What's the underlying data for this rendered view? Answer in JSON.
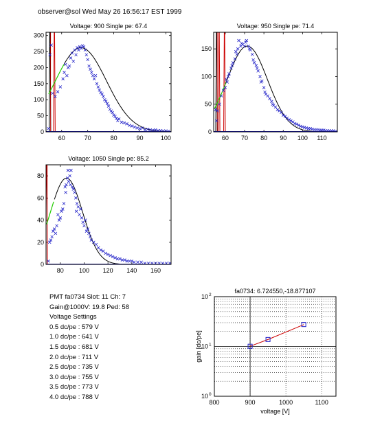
{
  "header": {
    "text": "observer@sol  Wed May 26 16:56:17 EST 1999"
  },
  "colors": {
    "data": "#2020c8",
    "fit": "#000000",
    "fit_low": "#22cc00",
    "pedestal": "#cc0000",
    "gain_line": "#cc0000",
    "gain_marker": "#2020c8"
  },
  "info": {
    "line1": "PMT fa0734 Slot: 11 Ch: 7",
    "line2": "Gain@1000V: 19.8 Ped: 58",
    "line3": "Voltage Settings",
    "settings": [
      "0.5 dc/pe : 579 V",
      "1.0 dc/pe : 641 V",
      "1.5 dc/pe : 681 V",
      "2.0 dc/pe : 711 V",
      "2.5 dc/pe : 735 V",
      "3.0 dc/pe : 755 V",
      "3.5 dc/pe : 773 V",
      "4.0 dc/pe : 788 V"
    ]
  },
  "chart_data": [
    {
      "type": "scatter",
      "title": "Voltage: 900 Single pe: 67.4",
      "xlim": [
        54,
        102
      ],
      "ylim": [
        0,
        310
      ],
      "xticks": [
        60,
        70,
        80,
        90,
        100
      ],
      "yticks": [
        0,
        50,
        100,
        150,
        200,
        250,
        300
      ],
      "fit": {
        "amplitude": 262,
        "mean": 67.4,
        "sigma": 9.8,
        "x_start": 55,
        "switch_x": 61
      },
      "pedestal_x": [
        55.5,
        57.2
      ],
      "points": [
        [
          55,
          10
        ],
        [
          55.5,
          240
        ],
        [
          56,
          270
        ],
        [
          56.5,
          120
        ],
        [
          57.5,
          110
        ],
        [
          58.5,
          125
        ],
        [
          59.5,
          140
        ],
        [
          60.5,
          165
        ],
        [
          61,
          185
        ],
        [
          61.5,
          210
        ],
        [
          62,
          175
        ],
        [
          62.5,
          200
        ],
        [
          63,
          205
        ],
        [
          63.5,
          230
        ],
        [
          64,
          245
        ],
        [
          64.5,
          220
        ],
        [
          65,
          255
        ],
        [
          65.5,
          240
        ],
        [
          66,
          262
        ],
        [
          66.5,
          255
        ],
        [
          67,
          265
        ],
        [
          67.5,
          260
        ],
        [
          68,
          268
        ],
        [
          68.5,
          265
        ],
        [
          69,
          255
        ],
        [
          69.5,
          240
        ],
        [
          70,
          225
        ],
        [
          70.5,
          205
        ],
        [
          71,
          195
        ],
        [
          71.5,
          185
        ],
        [
          72,
          175
        ],
        [
          72.5,
          165
        ],
        [
          73,
          175
        ],
        [
          73.5,
          150
        ],
        [
          74,
          140
        ],
        [
          74.5,
          130
        ],
        [
          75,
          122
        ],
        [
          75.5,
          118
        ],
        [
          76,
          110
        ],
        [
          76.5,
          100
        ],
        [
          77,
          95
        ],
        [
          77.5,
          88
        ],
        [
          78,
          80
        ],
        [
          78.5,
          70
        ],
        [
          79,
          65
        ],
        [
          79.5,
          60
        ],
        [
          80,
          52
        ],
        [
          80.5,
          48
        ],
        [
          81,
          42
        ],
        [
          81.5,
          35
        ],
        [
          82,
          40
        ],
        [
          83,
          30
        ],
        [
          84,
          28
        ],
        [
          85,
          25
        ],
        [
          86,
          20
        ],
        [
          87,
          18
        ],
        [
          88,
          15
        ],
        [
          89,
          12
        ],
        [
          90,
          10
        ],
        [
          91,
          12
        ],
        [
          92,
          6
        ],
        [
          93,
          8
        ],
        [
          94,
          6
        ],
        [
          95,
          5
        ],
        [
          96,
          6
        ],
        [
          97,
          4
        ],
        [
          98,
          4
        ],
        [
          99,
          3
        ],
        [
          100,
          3
        ],
        [
          101,
          2
        ]
      ]
    },
    {
      "type": "scatter",
      "title": "Voltage: 950 Single pe: 71.4",
      "xlim": [
        54,
        118
      ],
      "ylim": [
        0,
        180
      ],
      "xticks": [
        60,
        70,
        80,
        90,
        100,
        110
      ],
      "yticks": [
        0,
        50,
        100,
        150
      ],
      "fit": {
        "amplitude": 155,
        "mean": 71.4,
        "sigma": 10.5,
        "x_start": 54.5,
        "switch_x": 60.5
      },
      "pedestal_x": [
        55.5,
        56.8,
        59.6
      ],
      "points": [
        [
          55,
          40
        ],
        [
          55.5,
          20
        ],
        [
          56,
          38
        ],
        [
          57,
          50
        ],
        [
          58,
          65
        ],
        [
          59,
          75
        ],
        [
          60,
          80
        ],
        [
          60.5,
          95
        ],
        [
          61,
          90
        ],
        [
          61.5,
          100
        ],
        [
          62,
          105
        ],
        [
          63,
          115
        ],
        [
          63.5,
          120
        ],
        [
          64,
          125
        ],
        [
          65,
          132
        ],
        [
          65.5,
          145
        ],
        [
          66,
          140
        ],
        [
          66.5,
          150
        ],
        [
          67,
          165
        ],
        [
          68,
          155
        ],
        [
          68.5,
          160
        ],
        [
          69,
          158
        ],
        [
          70,
          155
        ],
        [
          70.5,
          162
        ],
        [
          71,
          165
        ],
        [
          72,
          155
        ],
        [
          72.5,
          150
        ],
        [
          73,
          148
        ],
        [
          74,
          140
        ],
        [
          74.5,
          130
        ],
        [
          75,
          125
        ],
        [
          76,
          120
        ],
        [
          76.5,
          115
        ],
        [
          77,
          110
        ],
        [
          78,
          100
        ],
        [
          78.5,
          90
        ],
        [
          79,
          92
        ],
        [
          80,
          80
        ],
        [
          80.5,
          72
        ],
        [
          81,
          68
        ],
        [
          82,
          65
        ],
        [
          83,
          60
        ],
        [
          84,
          55
        ],
        [
          84.5,
          50
        ],
        [
          85,
          48
        ],
        [
          86,
          45
        ],
        [
          87,
          40
        ],
        [
          88,
          38
        ],
        [
          89,
          35
        ],
        [
          90,
          30
        ],
        [
          91,
          28
        ],
        [
          92,
          25
        ],
        [
          93,
          22
        ],
        [
          94,
          20
        ],
        [
          95,
          18
        ],
        [
          96,
          15
        ],
        [
          97,
          14
        ],
        [
          98,
          12
        ],
        [
          99,
          10
        ],
        [
          100,
          9
        ],
        [
          101,
          8
        ],
        [
          102,
          7
        ],
        [
          103,
          6
        ],
        [
          104,
          6
        ],
        [
          105,
          5
        ],
        [
          106,
          4
        ],
        [
          107,
          4
        ],
        [
          108,
          4
        ],
        [
          109,
          3
        ],
        [
          110,
          3
        ],
        [
          111,
          3
        ],
        [
          112,
          2
        ],
        [
          113,
          2
        ],
        [
          114,
          2
        ],
        [
          115,
          2
        ],
        [
          116,
          2
        ],
        [
          117,
          1
        ]
      ]
    },
    {
      "type": "scatter",
      "title": "Voltage: 1050 Single pe: 85.2",
      "xlim": [
        68,
        173
      ],
      "ylim": [
        0,
        90
      ],
      "xticks": [
        80,
        100,
        120,
        140,
        160
      ],
      "yticks": [
        0,
        20,
        40,
        60,
        80
      ],
      "fit": {
        "amplitude": 78,
        "mean": 85.2,
        "sigma": 13.5,
        "x_start": 68.5,
        "switch_x": 75
      },
      "pedestal_x": [
        68.4
      ],
      "points": [
        [
          70,
          3
        ],
        [
          71,
          20
        ],
        [
          72,
          22
        ],
        [
          73,
          25
        ],
        [
          74,
          30
        ],
        [
          75,
          32
        ],
        [
          76,
          28
        ],
        [
          77,
          35
        ],
        [
          78,
          45
        ],
        [
          79,
          40
        ],
        [
          80,
          42
        ],
        [
          81,
          48
        ],
        [
          82,
          50
        ],
        [
          83,
          55
        ],
        [
          84,
          70
        ],
        [
          84.5,
          65
        ],
        [
          85,
          72
        ],
        [
          86,
          78
        ],
        [
          86.5,
          85
        ],
        [
          87,
          75
        ],
        [
          88,
          80
        ],
        [
          88.5,
          72
        ],
        [
          89,
          85
        ],
        [
          90,
          70
        ],
        [
          91,
          68
        ],
        [
          92,
          65
        ],
        [
          93,
          60
        ],
        [
          93.5,
          48
        ],
        [
          94,
          55
        ],
        [
          95,
          52
        ],
        [
          96,
          45
        ],
        [
          97,
          50
        ],
        [
          98,
          42
        ],
        [
          99,
          38
        ],
        [
          100,
          35
        ],
        [
          101,
          40
        ],
        [
          102,
          30
        ],
        [
          103,
          32
        ],
        [
          104,
          28
        ],
        [
          105,
          25
        ],
        [
          106,
          22
        ],
        [
          108,
          20
        ],
        [
          110,
          18
        ],
        [
          112,
          15
        ],
        [
          114,
          13
        ],
        [
          116,
          12
        ],
        [
          118,
          10
        ],
        [
          120,
          9
        ],
        [
          122,
          8
        ],
        [
          124,
          7
        ],
        [
          126,
          6
        ],
        [
          128,
          5
        ],
        [
          130,
          5
        ],
        [
          132,
          4
        ],
        [
          134,
          4
        ],
        [
          136,
          3
        ],
        [
          138,
          3
        ],
        [
          140,
          3
        ],
        [
          142,
          2
        ],
        [
          145,
          2
        ],
        [
          148,
          2
        ],
        [
          151,
          1
        ],
        [
          154,
          1
        ],
        [
          157,
          1
        ],
        [
          160,
          1
        ],
        [
          163,
          1
        ],
        [
          166,
          1
        ],
        [
          169,
          1
        ],
        [
          172,
          1
        ]
      ]
    },
    {
      "type": "line",
      "title": "fa0734: 6.724550,-18.877107",
      "xlabel": "voltage [V]",
      "ylabel": "gain [dc/pe]",
      "xlim": [
        800,
        1140
      ],
      "ylim": [
        1,
        100
      ],
      "yscale": "log",
      "grid": true,
      "xticks": [
        800,
        900,
        1000,
        1100
      ],
      "yticks": [
        {
          "value": 1,
          "base": "10",
          "exp": "0"
        },
        {
          "value": 10,
          "base": "10",
          "exp": "1"
        },
        {
          "value": 100,
          "base": "10",
          "exp": "2"
        }
      ],
      "points": [
        [
          900,
          10.1
        ],
        [
          950,
          13.8
        ],
        [
          1050,
          27.5
        ]
      ]
    }
  ]
}
